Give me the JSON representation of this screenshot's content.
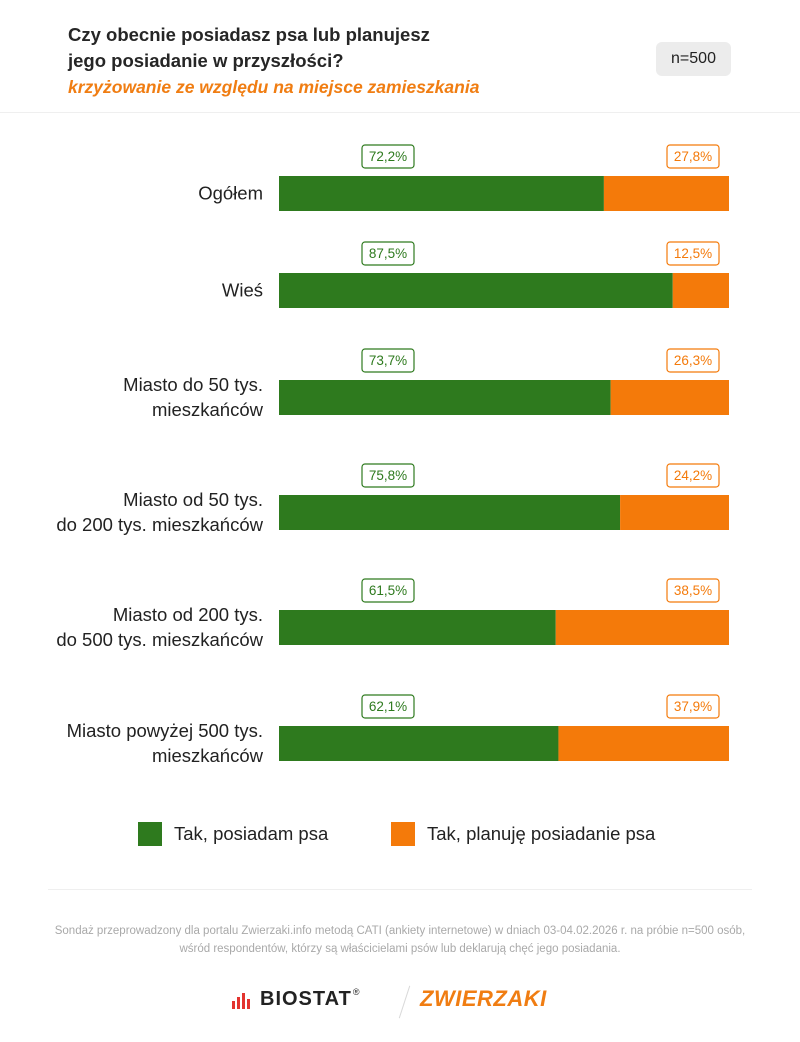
{
  "header": {
    "title_line1": "Czy obecnie posiadasz psa lub planujesz",
    "title_line2": "jego posiadanie w przyszłości?",
    "subtitle": "krzyżowanie ze względu na miejsce zamieszkania",
    "sample": "n=500"
  },
  "chart_data": {
    "type": "bar",
    "stacked": true,
    "orientation": "horizontal",
    "categories": [
      [
        "Ogółem"
      ],
      [
        "Wieś"
      ],
      [
        "Miasto do 50 tys.",
        "mieszkańców"
      ],
      [
        "Miasto od 50 tys.",
        "do 200 tys. mieszkańców"
      ],
      [
        "Miasto od 200 tys.",
        "do 500 tys. mieszkańców"
      ],
      [
        "Miasto powyżej 500 tys.",
        "mieszkańców"
      ]
    ],
    "series": [
      {
        "name": "Tak, posiadam psa",
        "color": "#2e7a1e",
        "values": [
          72.2,
          87.5,
          73.7,
          75.8,
          61.5,
          62.1
        ],
        "labels": [
          "72,2%",
          "87,5%",
          "73,7%",
          "75,8%",
          "61,5%",
          "62,1%"
        ]
      },
      {
        "name": "Tak, planuję posiadanie psa",
        "color": "#f47a0a",
        "values": [
          27.8,
          12.5,
          26.3,
          24.2,
          38.5,
          37.9
        ],
        "labels": [
          "27,8%",
          "12,5%",
          "26,3%",
          "24,2%",
          "38,5%",
          "37,9%"
        ]
      }
    ],
    "xlim": [
      0,
      100
    ],
    "legend_position": "bottom"
  },
  "legend": {
    "items": [
      {
        "label": "Tak, posiadam psa",
        "color": "#2e7a1e"
      },
      {
        "label": "Tak, planuję posiadanie psa",
        "color": "#f47a0a"
      }
    ]
  },
  "footnote": {
    "line1": "Sondaż przeprowadzony dla portalu Zwierzaki.info metodą CATI (ankiety internetowe) w dniach 03-04.02.2026 r. na próbie n=500 osób,",
    "line2": "wśród respondentów, którzy są właścicielami psów lub deklarują chęć jego posiadania."
  },
  "logos": {
    "biostat": "BIOSTAT",
    "biostat_reg": "®",
    "zwierzaki": "ZWIERZAKI"
  }
}
